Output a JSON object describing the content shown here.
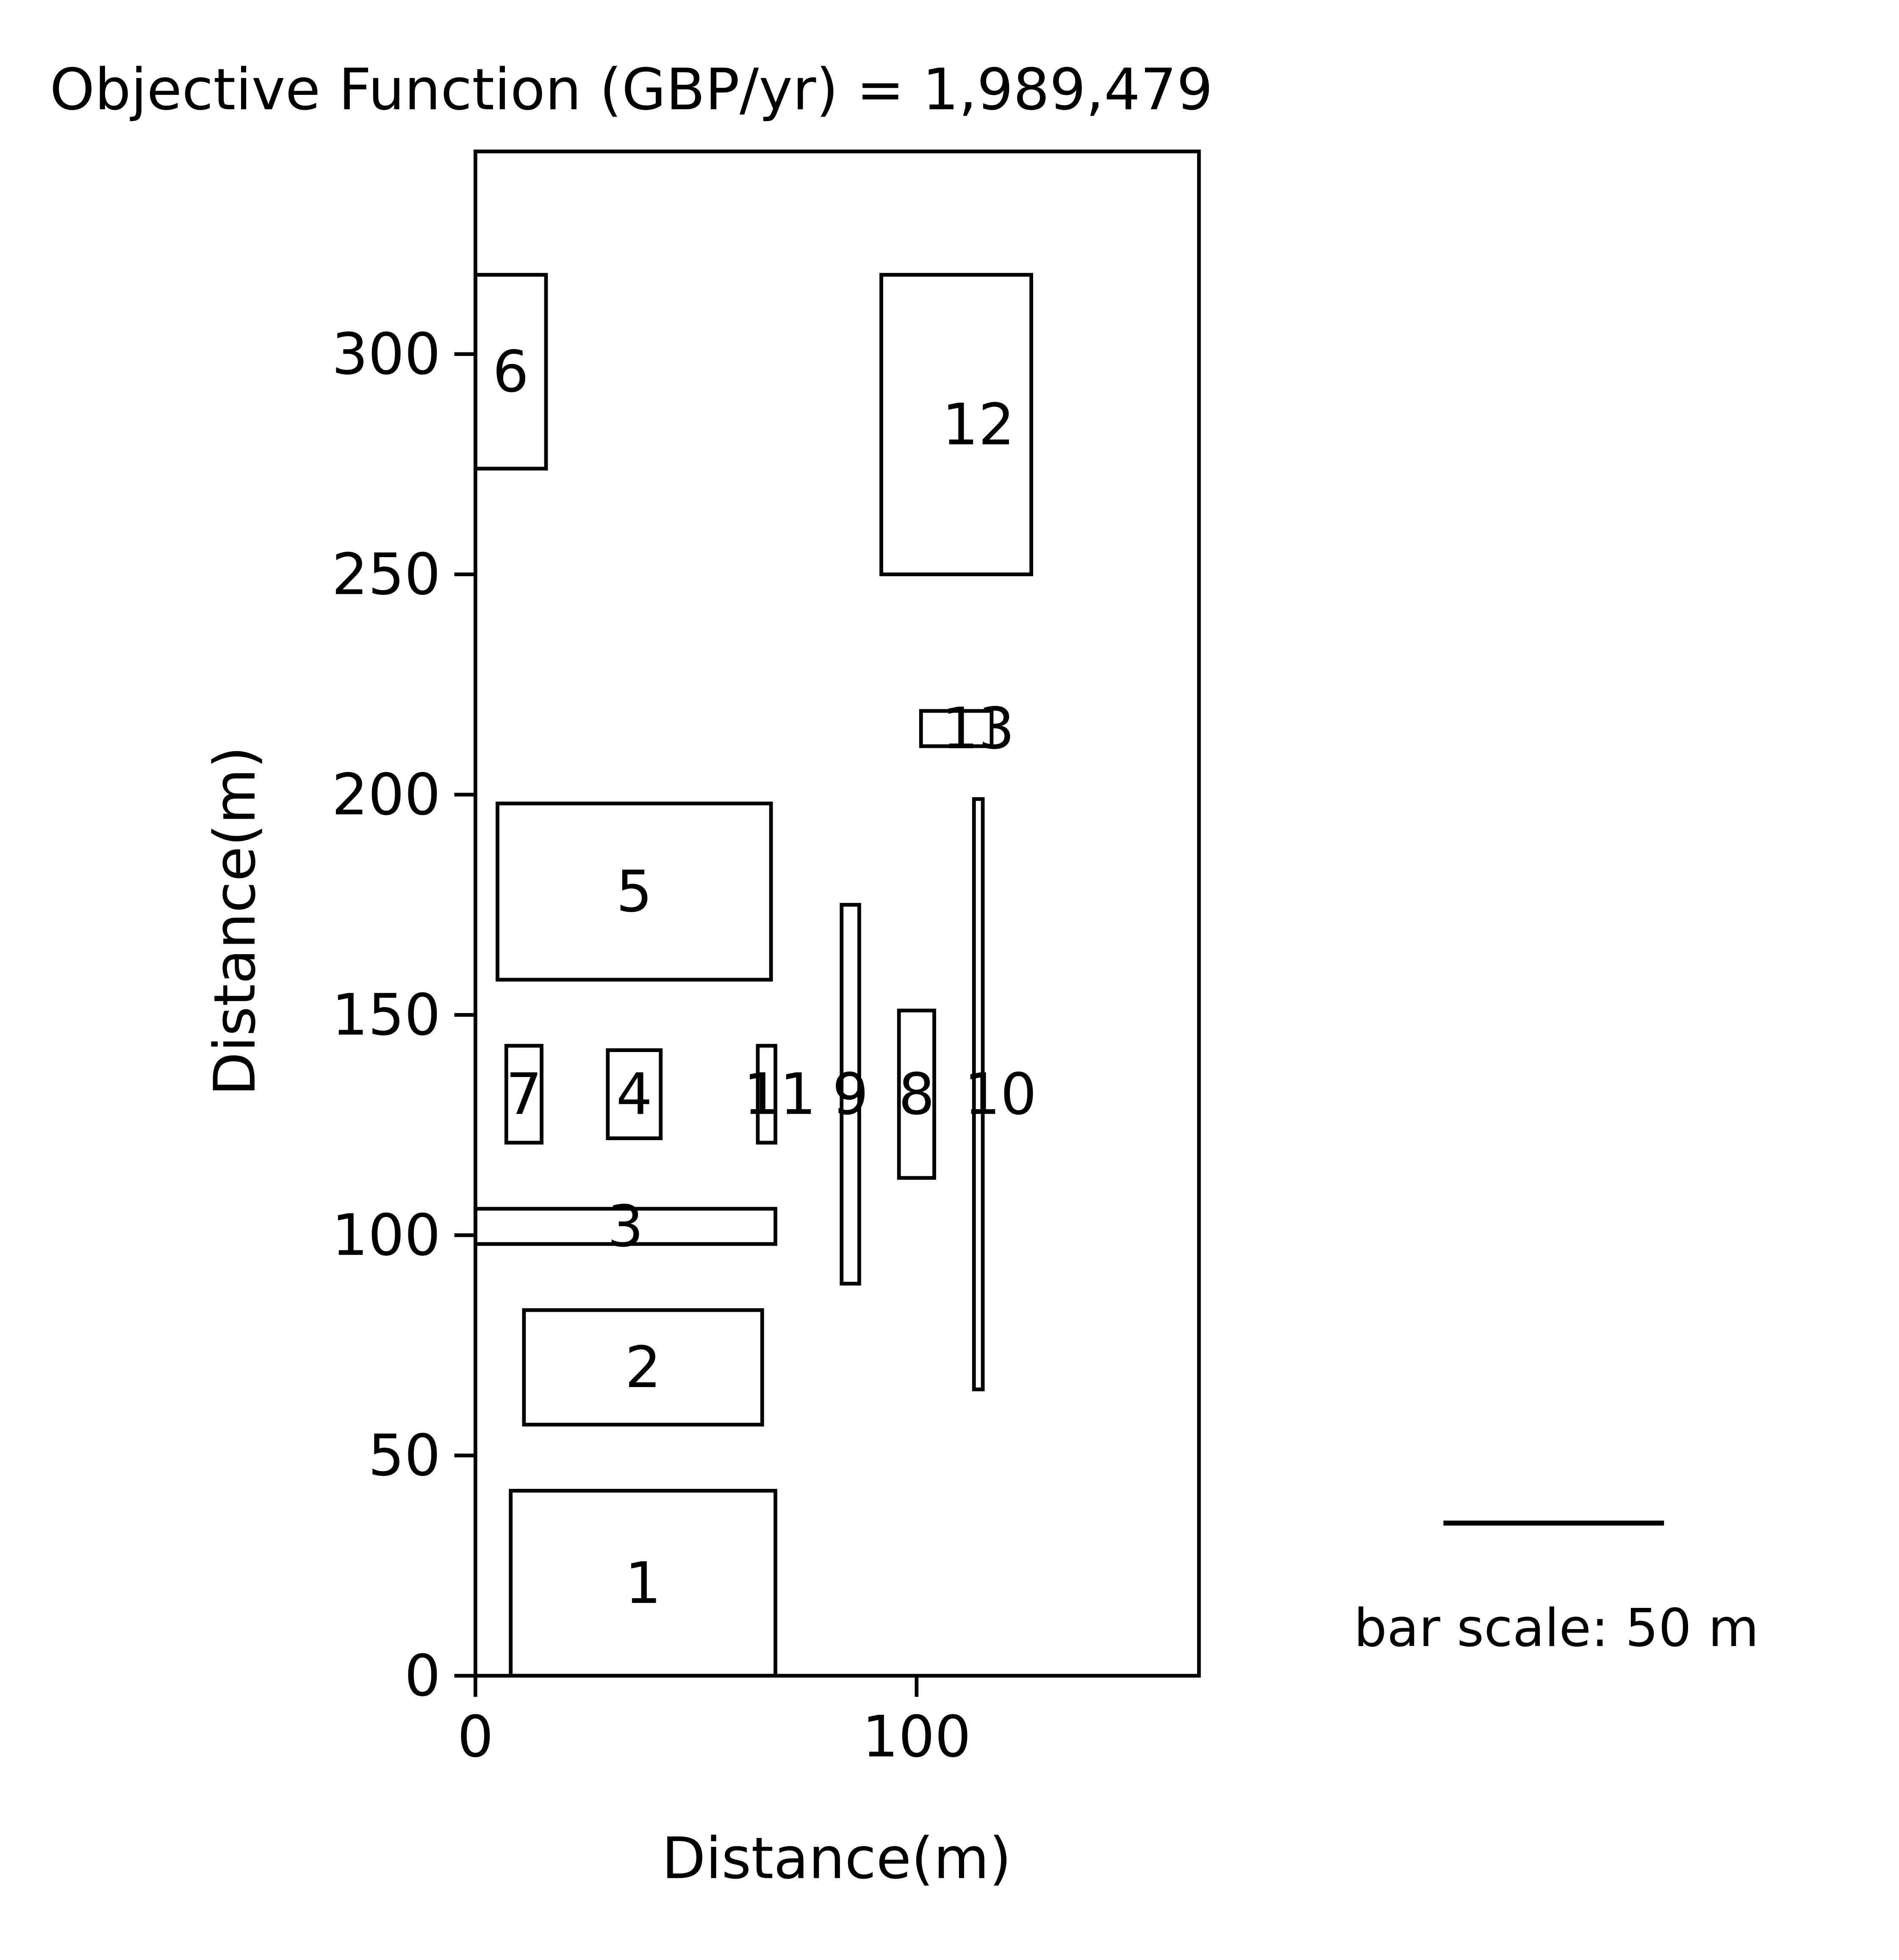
{
  "title": "Objective Function (GBP/yr) = 1,989,479",
  "scale_bar": {
    "label": "bar scale: 50 m",
    "length_m": 50
  },
  "chart_data": {
    "type": "layout",
    "xlabel": "Distance(m)",
    "ylabel": "Distance(m)",
    "xlim": [
      0,
      164
    ],
    "ylim": [
      0,
      346
    ],
    "xticks": [
      0,
      100
    ],
    "yticks": [
      0,
      50,
      100,
      150,
      200,
      250,
      300
    ],
    "facilities": [
      {
        "id": "1",
        "x0": 8,
        "y0": 0,
        "x1": 68,
        "y1": 42
      },
      {
        "id": "2",
        "x0": 11,
        "y0": 57,
        "x1": 65,
        "y1": 83
      },
      {
        "id": "3",
        "x0": 0,
        "y0": 98,
        "x1": 68,
        "y1": 106
      },
      {
        "id": "4",
        "x0": 30,
        "y0": 122,
        "x1": 42,
        "y1": 142
      },
      {
        "id": "5",
        "x0": 5,
        "y0": 158,
        "x1": 67,
        "y1": 198
      },
      {
        "id": "6",
        "x0": 0,
        "y0": 274,
        "x1": 16,
        "y1": 318
      },
      {
        "id": "7",
        "x0": 7,
        "y0": 121,
        "x1": 15,
        "y1": 143
      },
      {
        "id": "8",
        "x0": 96,
        "y0": 113,
        "x1": 104,
        "y1": 151
      },
      {
        "id": "9",
        "x0": 83,
        "y0": 89,
        "x1": 87,
        "y1": 175
      },
      {
        "id": "10",
        "x0": 113,
        "y0": 65,
        "x1": 115,
        "y1": 199
      },
      {
        "id": "11",
        "x0": 64,
        "y0": 121,
        "x1": 68,
        "y1": 143
      },
      {
        "id": "12",
        "x0": 92,
        "y0": 250,
        "x1": 126,
        "y1": 318
      },
      {
        "id": "13",
        "x0": 101,
        "y0": 211,
        "x1": 117,
        "y1": 219
      }
    ],
    "labels": [
      {
        "text": "1",
        "x": 38,
        "y": 21
      },
      {
        "text": "2",
        "x": 38,
        "y": 70
      },
      {
        "text": "3",
        "x": 34,
        "y": 102
      },
      {
        "text": "4",
        "x": 36,
        "y": 132
      },
      {
        "text": "5",
        "x": 36,
        "y": 178
      },
      {
        "text": "6",
        "x": 8,
        "y": 296
      },
      {
        "text": "7",
        "x": 11,
        "y": 132
      },
      {
        "text": "8",
        "x": 100,
        "y": 132
      },
      {
        "text": "9",
        "x": 85,
        "y": 132
      },
      {
        "text": "10",
        "x": 119,
        "y": 132
      },
      {
        "text": "11",
        "x": 69,
        "y": 132
      },
      {
        "text": "12",
        "x": 114,
        "y": 284
      },
      {
        "text": "13",
        "x": 114,
        "y": 215
      }
    ]
  }
}
